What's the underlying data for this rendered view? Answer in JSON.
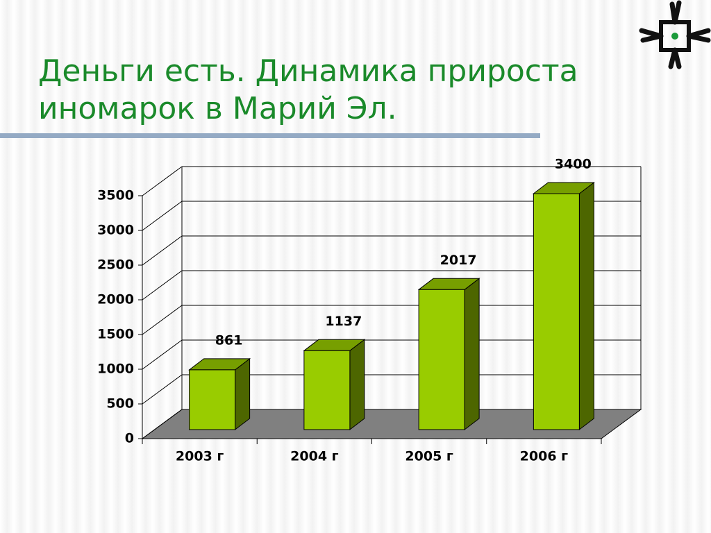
{
  "chart_data": {
    "type": "bar",
    "title": "Деньги есть. Динамика прироста\nиномарок в Марий Эл.",
    "categories": [
      "2003 г",
      "2004 г",
      "2005 г",
      "2006 г"
    ],
    "values": [
      861,
      1137,
      2017,
      3400
    ],
    "color": "#99cc00",
    "ylim": [
      0,
      3500
    ],
    "yticks": [
      0,
      500,
      1000,
      1500,
      2000,
      2500,
      3000,
      3500
    ],
    "grid": true
  }
}
